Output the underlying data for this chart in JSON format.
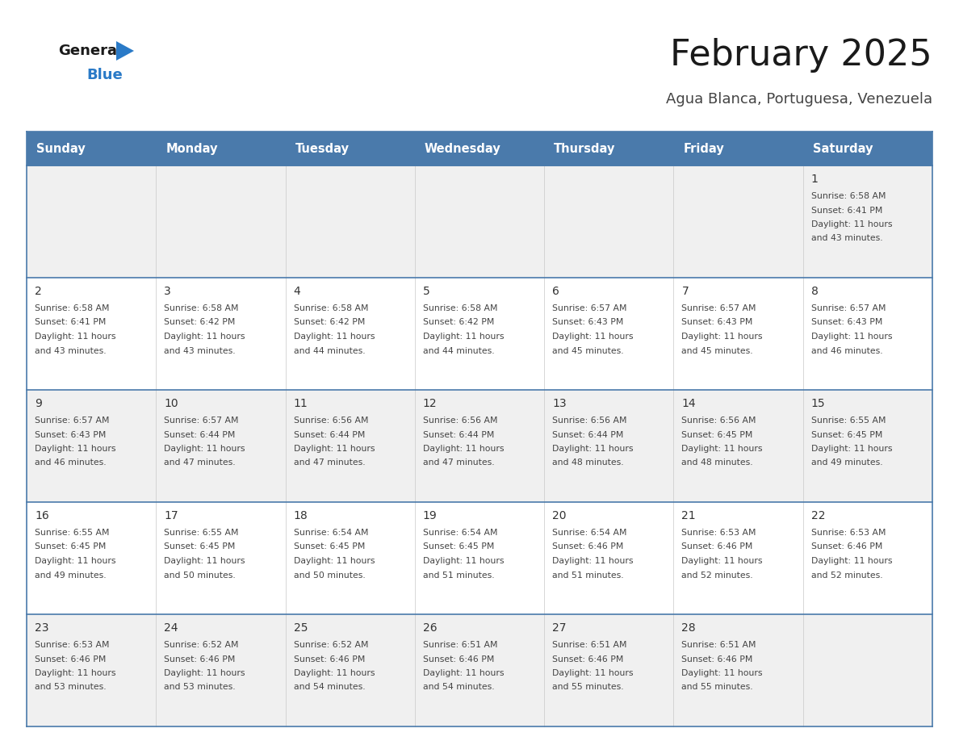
{
  "title": "February 2025",
  "subtitle": "Agua Blanca, Portuguesa, Venezuela",
  "days_of_week": [
    "Sunday",
    "Monday",
    "Tuesday",
    "Wednesday",
    "Thursday",
    "Friday",
    "Saturday"
  ],
  "header_bg": "#4a7aab",
  "header_text": "#ffffff",
  "row_bg_light": "#f0f0f0",
  "row_bg_white": "#ffffff",
  "separator_color": "#4a7aab",
  "cell_line_color": "#c8c8c8",
  "text_color": "#444444",
  "day_number_color": "#333333",
  "title_color": "#1a1a1a",
  "subtitle_color": "#444444",
  "logo_general_color": "#1a1a1a",
  "logo_blue_color": "#2a7ac7",
  "calendar_data": [
    [
      null,
      null,
      null,
      null,
      null,
      null,
      {
        "day": "1",
        "sunrise": "6:58 AM",
        "sunset": "6:41 PM",
        "daylight1": "Daylight: 11 hours",
        "daylight2": "and 43 minutes."
      }
    ],
    [
      {
        "day": "2",
        "sunrise": "6:58 AM",
        "sunset": "6:41 PM",
        "daylight1": "Daylight: 11 hours",
        "daylight2": "and 43 minutes."
      },
      {
        "day": "3",
        "sunrise": "6:58 AM",
        "sunset": "6:42 PM",
        "daylight1": "Daylight: 11 hours",
        "daylight2": "and 43 minutes."
      },
      {
        "day": "4",
        "sunrise": "6:58 AM",
        "sunset": "6:42 PM",
        "daylight1": "Daylight: 11 hours",
        "daylight2": "and 44 minutes."
      },
      {
        "day": "5",
        "sunrise": "6:58 AM",
        "sunset": "6:42 PM",
        "daylight1": "Daylight: 11 hours",
        "daylight2": "and 44 minutes."
      },
      {
        "day": "6",
        "sunrise": "6:57 AM",
        "sunset": "6:43 PM",
        "daylight1": "Daylight: 11 hours",
        "daylight2": "and 45 minutes."
      },
      {
        "day": "7",
        "sunrise": "6:57 AM",
        "sunset": "6:43 PM",
        "daylight1": "Daylight: 11 hours",
        "daylight2": "and 45 minutes."
      },
      {
        "day": "8",
        "sunrise": "6:57 AM",
        "sunset": "6:43 PM",
        "daylight1": "Daylight: 11 hours",
        "daylight2": "and 46 minutes."
      }
    ],
    [
      {
        "day": "9",
        "sunrise": "6:57 AM",
        "sunset": "6:43 PM",
        "daylight1": "Daylight: 11 hours",
        "daylight2": "and 46 minutes."
      },
      {
        "day": "10",
        "sunrise": "6:57 AM",
        "sunset": "6:44 PM",
        "daylight1": "Daylight: 11 hours",
        "daylight2": "and 47 minutes."
      },
      {
        "day": "11",
        "sunrise": "6:56 AM",
        "sunset": "6:44 PM",
        "daylight1": "Daylight: 11 hours",
        "daylight2": "and 47 minutes."
      },
      {
        "day": "12",
        "sunrise": "6:56 AM",
        "sunset": "6:44 PM",
        "daylight1": "Daylight: 11 hours",
        "daylight2": "and 47 minutes."
      },
      {
        "day": "13",
        "sunrise": "6:56 AM",
        "sunset": "6:44 PM",
        "daylight1": "Daylight: 11 hours",
        "daylight2": "and 48 minutes."
      },
      {
        "day": "14",
        "sunrise": "6:56 AM",
        "sunset": "6:45 PM",
        "daylight1": "Daylight: 11 hours",
        "daylight2": "and 48 minutes."
      },
      {
        "day": "15",
        "sunrise": "6:55 AM",
        "sunset": "6:45 PM",
        "daylight1": "Daylight: 11 hours",
        "daylight2": "and 49 minutes."
      }
    ],
    [
      {
        "day": "16",
        "sunrise": "6:55 AM",
        "sunset": "6:45 PM",
        "daylight1": "Daylight: 11 hours",
        "daylight2": "and 49 minutes."
      },
      {
        "day": "17",
        "sunrise": "6:55 AM",
        "sunset": "6:45 PM",
        "daylight1": "Daylight: 11 hours",
        "daylight2": "and 50 minutes."
      },
      {
        "day": "18",
        "sunrise": "6:54 AM",
        "sunset": "6:45 PM",
        "daylight1": "Daylight: 11 hours",
        "daylight2": "and 50 minutes."
      },
      {
        "day": "19",
        "sunrise": "6:54 AM",
        "sunset": "6:45 PM",
        "daylight1": "Daylight: 11 hours",
        "daylight2": "and 51 minutes."
      },
      {
        "day": "20",
        "sunrise": "6:54 AM",
        "sunset": "6:46 PM",
        "daylight1": "Daylight: 11 hours",
        "daylight2": "and 51 minutes."
      },
      {
        "day": "21",
        "sunrise": "6:53 AM",
        "sunset": "6:46 PM",
        "daylight1": "Daylight: 11 hours",
        "daylight2": "and 52 minutes."
      },
      {
        "day": "22",
        "sunrise": "6:53 AM",
        "sunset": "6:46 PM",
        "daylight1": "Daylight: 11 hours",
        "daylight2": "and 52 minutes."
      }
    ],
    [
      {
        "day": "23",
        "sunrise": "6:53 AM",
        "sunset": "6:46 PM",
        "daylight1": "Daylight: 11 hours",
        "daylight2": "and 53 minutes."
      },
      {
        "day": "24",
        "sunrise": "6:52 AM",
        "sunset": "6:46 PM",
        "daylight1": "Daylight: 11 hours",
        "daylight2": "and 53 minutes."
      },
      {
        "day": "25",
        "sunrise": "6:52 AM",
        "sunset": "6:46 PM",
        "daylight1": "Daylight: 11 hours",
        "daylight2": "and 54 minutes."
      },
      {
        "day": "26",
        "sunrise": "6:51 AM",
        "sunset": "6:46 PM",
        "daylight1": "Daylight: 11 hours",
        "daylight2": "and 54 minutes."
      },
      {
        "day": "27",
        "sunrise": "6:51 AM",
        "sunset": "6:46 PM",
        "daylight1": "Daylight: 11 hours",
        "daylight2": "and 55 minutes."
      },
      {
        "day": "28",
        "sunrise": "6:51 AM",
        "sunset": "6:46 PM",
        "daylight1": "Daylight: 11 hours",
        "daylight2": "and 55 minutes."
      },
      null
    ]
  ]
}
